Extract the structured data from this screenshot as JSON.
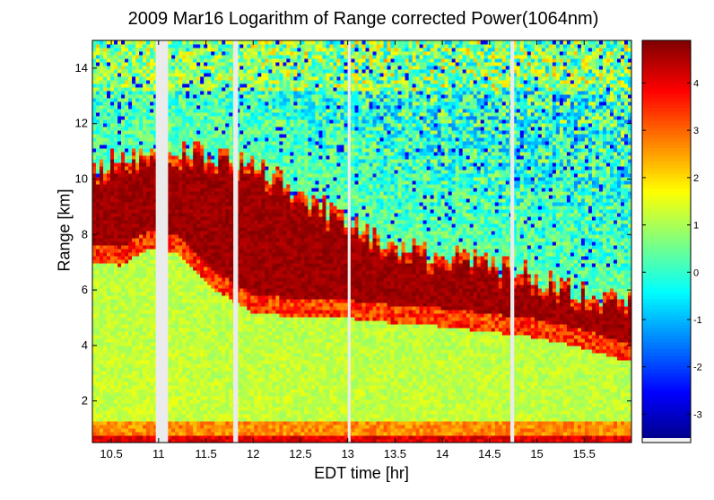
{
  "chart_data": {
    "type": "heatmap",
    "title": "2009 Mar16  Logarithm of Range corrected Power(1064nm)",
    "xlabel": "EDT time [hr]",
    "ylabel": "Range [km]",
    "xlim": [
      10.3,
      16.0
    ],
    "ylim": [
      0.5,
      15
    ],
    "x_ticks": [
      "10.5",
      "11",
      "11.5",
      "12",
      "12.5",
      "13",
      "13.5",
      "14",
      "14.5",
      "15",
      "15.5"
    ],
    "x_tick_values": [
      10.5,
      11,
      11.5,
      12,
      12.5,
      13,
      13.5,
      14,
      14.5,
      15,
      15.5
    ],
    "y_ticks": [
      "2",
      "4",
      "6",
      "8",
      "10",
      "12",
      "14"
    ],
    "y_tick_values": [
      2,
      4,
      6,
      8,
      10,
      12,
      14
    ],
    "colorbar": {
      "range": [
        -3.6,
        4.9
      ],
      "ticks": [
        "4",
        "3",
        "2",
        "1",
        "0",
        "-1",
        "-2",
        "-3"
      ],
      "tick_values": [
        4,
        3,
        2,
        1,
        0,
        -1,
        -2,
        -3
      ],
      "colormap": "jet"
    },
    "data_gaps_hr": [
      [
        10.97,
        11.1
      ],
      [
        11.79,
        11.84
      ],
      [
        13.0,
        13.03
      ],
      [
        14.72,
        14.76
      ]
    ],
    "aerosol_layer_top_km": [
      {
        "x": 10.3,
        "y": 10.4
      },
      {
        "x": 10.6,
        "y": 10.8
      },
      {
        "x": 10.9,
        "y": 11.0
      },
      {
        "x": 11.2,
        "y": 11.0
      },
      {
        "x": 11.6,
        "y": 10.9
      },
      {
        "x": 12.0,
        "y": 10.5
      },
      {
        "x": 12.5,
        "y": 9.6
      },
      {
        "x": 13.0,
        "y": 8.5
      },
      {
        "x": 13.5,
        "y": 7.6
      },
      {
        "x": 14.0,
        "y": 7.3
      },
      {
        "x": 14.5,
        "y": 7.0
      },
      {
        "x": 15.0,
        "y": 6.5
      },
      {
        "x": 15.5,
        "y": 6.0
      },
      {
        "x": 16.0,
        "y": 5.6
      }
    ],
    "aerosol_layer_bottom_km": [
      {
        "x": 10.3,
        "y": 7.3
      },
      {
        "x": 10.6,
        "y": 7.2
      },
      {
        "x": 10.9,
        "y": 7.8
      },
      {
        "x": 11.2,
        "y": 7.6
      },
      {
        "x": 11.6,
        "y": 6.3
      },
      {
        "x": 12.0,
        "y": 5.5
      },
      {
        "x": 12.5,
        "y": 5.3
      },
      {
        "x": 13.0,
        "y": 5.3
      },
      {
        "x": 13.5,
        "y": 5.1
      },
      {
        "x": 14.0,
        "y": 5.0
      },
      {
        "x": 14.5,
        "y": 4.8
      },
      {
        "x": 15.0,
        "y": 4.6
      },
      {
        "x": 15.5,
        "y": 4.2
      },
      {
        "x": 16.0,
        "y": 3.7
      }
    ],
    "boundary_layer_top_km": 1.3
  }
}
